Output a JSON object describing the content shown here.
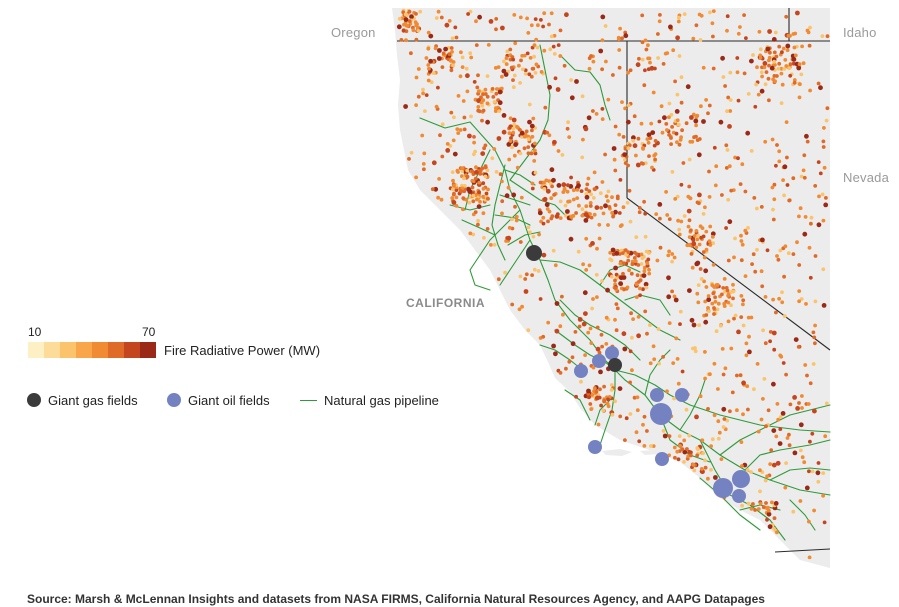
{
  "labels": {
    "oregon": "Oregon",
    "idaho": "Idaho",
    "nevada": "Nevada",
    "california": "CALIFORNIA"
  },
  "legend": {
    "scale_min": "10",
    "scale_max": "70",
    "scale_title": "Fire Radiative Power (MW)",
    "scale_colors": [
      "#fdf0c4",
      "#fcdc98",
      "#fbc46c",
      "#f9a64a",
      "#f08a33",
      "#e06a27",
      "#c4461f",
      "#9a2a17"
    ],
    "gas_fields": "Giant gas fields",
    "oil_fields": "Giant oil fields",
    "pipeline": "Natural gas pipeline"
  },
  "colors": {
    "land": "#ececec",
    "border": "#2a2a2a",
    "pipeline": "#2f9a3a",
    "gas_field": "#3b3b3b",
    "oil_field": "#7482c2"
  },
  "source": "Source: Marsh & McLennan Insights and datasets from NASA FIRMS, California Natural Resources Agency, and AAPG Datapages"
}
